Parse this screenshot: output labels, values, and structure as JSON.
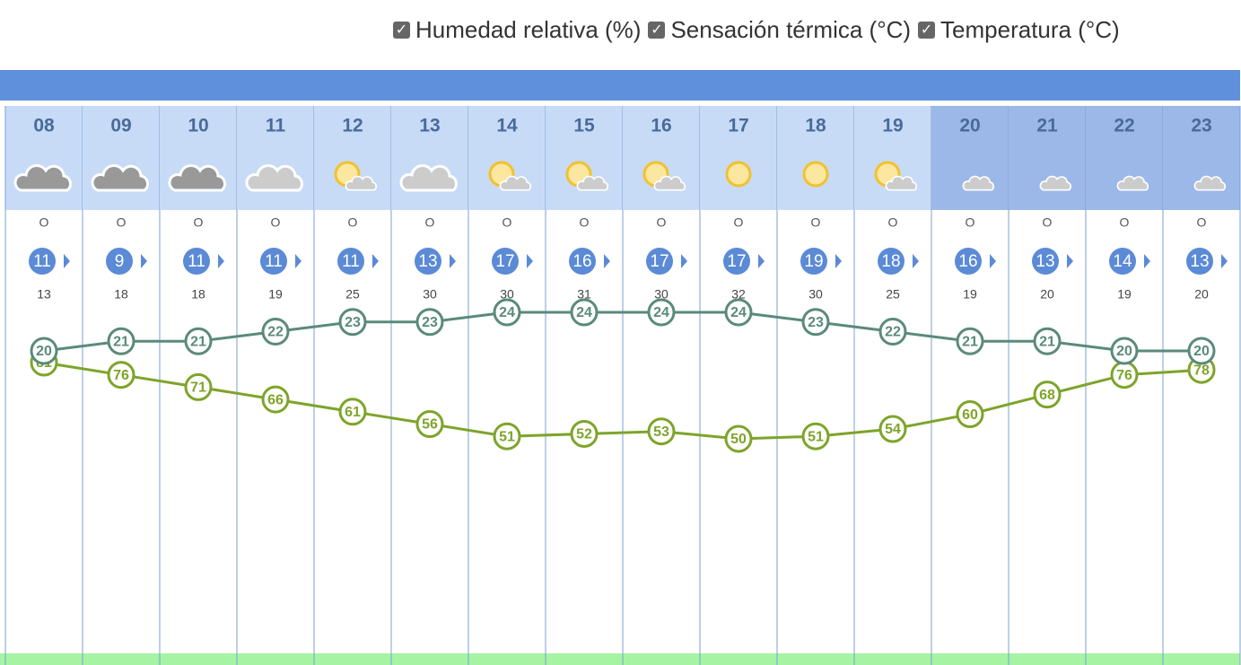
{
  "legend": [
    "Humedad relativa (%)",
    "Sensación térmica (°C)",
    "Temperatura (°C)"
  ],
  "hours": [
    "08",
    "09",
    "10",
    "11",
    "12",
    "13",
    "14",
    "15",
    "16",
    "17",
    "18",
    "19",
    "20",
    "21",
    "22",
    "23"
  ],
  "icons": [
    "cloud-dark",
    "cloud-dark",
    "cloud-dark",
    "cloud-light",
    "sun-cloud",
    "cloud-light",
    "sun-cloud",
    "sun-cloud",
    "sun-cloud",
    "sun",
    "sun",
    "sun-cloud",
    "moon-cloud",
    "moon-cloud",
    "moon-cloud",
    "moon-cloud"
  ],
  "night": [
    false,
    false,
    false,
    false,
    false,
    false,
    false,
    false,
    false,
    false,
    false,
    false,
    true,
    true,
    true,
    true
  ],
  "wind_direction": [
    "O",
    "O",
    "O",
    "O",
    "O",
    "O",
    "O",
    "O",
    "O",
    "O",
    "O",
    "O",
    "O",
    "O",
    "O",
    "O"
  ],
  "wind_speed": [
    11,
    9,
    11,
    11,
    11,
    13,
    17,
    16,
    17,
    17,
    19,
    18,
    16,
    13,
    14,
    13
  ],
  "gusts": [
    13,
    18,
    18,
    19,
    25,
    30,
    30,
    31,
    30,
    32,
    30,
    25,
    19,
    20,
    19,
    20
  ],
  "series": {
    "temperature": {
      "color": "#5a8a7c",
      "values": [
        20,
        21,
        21,
        22,
        23,
        23,
        24,
        24,
        24,
        24,
        23,
        22,
        21,
        21,
        20,
        20
      ]
    },
    "humidity": {
      "color": "#7ea42a",
      "values": [
        81,
        76,
        71,
        66,
        61,
        56,
        51,
        52,
        53,
        50,
        51,
        54,
        60,
        68,
        76,
        78
      ]
    }
  }
}
